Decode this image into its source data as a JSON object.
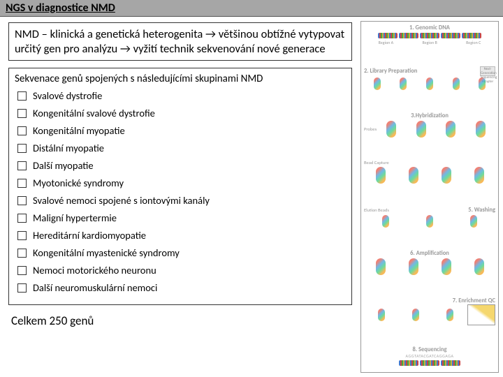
{
  "header": {
    "title": "NGS v diagnostice NMD"
  },
  "intro": {
    "text": "NMD – klinická a genetická heterogenita → většinou obtížné vytypovat určitý gen pro analýzu → vyžití technik sekvenování nové generace"
  },
  "section": {
    "title": "Sekvenace genů spojených s následujícími skupinami NMD",
    "items": [
      "Svalové dystrofie",
      "Kongenitální svalové dystrofie",
      "Kongenitální myopatie",
      "Distální myopatie",
      "Další myopatie",
      "Myotonické syndromy",
      "Svalové nemoci spojené s iontovými kanály",
      "Maligní hypertermie",
      "Hereditární kardiomyopatie",
      "Kongenitální myastenické syndromy",
      "Nemoci motorického neuronu",
      "Další neuromuskulární nemoci"
    ]
  },
  "total": {
    "text": "Celkem 250 genů"
  },
  "diagram": {
    "steps": [
      "1. Genomic DNA",
      "2. Library Preparation",
      "3.Hybridization",
      "",
      "5. Washing",
      "6. Amplification",
      "7. Enrichment QC",
      "8. Sequencing"
    ],
    "regions": [
      "Region A",
      "Region B",
      "Region C"
    ],
    "probes": "Probes",
    "capture": "Elution Beads",
    "adapter": "Next-Generation Sequencing Adapter",
    "bead_capture": "Bead Capture",
    "seq": "AGGTATACGATCAGGAGA"
  },
  "colors": {
    "header_bg": "#a6a6a6",
    "border": "#333333",
    "text": "#000000"
  }
}
